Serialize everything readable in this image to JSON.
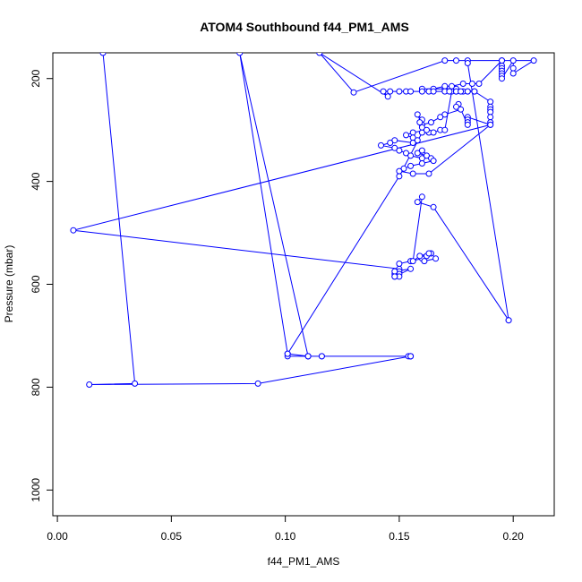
{
  "chart_data": {
    "type": "scatter",
    "title": "ATOM4 Southbound f44_PM1_AMS",
    "xlabel": "f44_PM1_AMS",
    "ylabel": "Pressure (mbar)",
    "xlim": [
      -0.002,
      0.218
    ],
    "ylim": [
      1050,
      150
    ],
    "y_reversed": true,
    "x_ticks": [
      0.0,
      0.05,
      0.1,
      0.15,
      0.2
    ],
    "x_tick_labels": [
      "0.00",
      "0.05",
      "0.10",
      "0.15",
      "0.20"
    ],
    "y_ticks": [
      200,
      400,
      600,
      800,
      1000
    ],
    "y_tick_labels": [
      "200",
      "400",
      "600",
      "800",
      "1000"
    ],
    "grid": false,
    "legend": "none",
    "color": "#0000ff",
    "series": [
      {
        "x": [
          0.02,
          0.034,
          0.014,
          0.088,
          0.155,
          0.154,
          0.155,
          0.116,
          0.11,
          0.101,
          0.101,
          0.11,
          0.116,
          0.155,
          0.11,
          0.08,
          0.101,
          0.15,
          0.16,
          0.163,
          0.165,
          0.168,
          0.17,
          0.173,
          0.175,
          0.178,
          0.18,
          0.183,
          0.17,
          0.175,
          0.16,
          0.165,
          0.17,
          0.173,
          0.178,
          0.182,
          0.185,
          0.195,
          0.195,
          0.195,
          0.195,
          0.195,
          0.195,
          0.195,
          0.2,
          0.2,
          0.2,
          0.209,
          0.195,
          0.18,
          0.175,
          0.17,
          0.13,
          0.115,
          0.145,
          0.143,
          0.146,
          0.15,
          0.153,
          0.155,
          0.16,
          0.163,
          0.165,
          0.17,
          0.172,
          0.175,
          0.177,
          0.18,
          0.183,
          0.19,
          0.19,
          0.19,
          0.19,
          0.19,
          0.19,
          0.19,
          0.18,
          0.18,
          0.18,
          0.18,
          0.176,
          0.175,
          0.177,
          0.17,
          0.168,
          0.164,
          0.16,
          0.158,
          0.16,
          0.159,
          0.16,
          0.162,
          0.156,
          0.153,
          0.156,
          0.158,
          0.156,
          0.148,
          0.146,
          0.142,
          0.148,
          0.15,
          0.153,
          0.155,
          0.16,
          0.162,
          0.158,
          0.16,
          0.164,
          0.165,
          0.16,
          0.155,
          0.152,
          0.15,
          0.156,
          0.163,
          0.19,
          0.007,
          0.15,
          0.15,
          0.15,
          0.15,
          0.148,
          0.148,
          0.148,
          0.155,
          0.148,
          0.15,
          0.155,
          0.16,
          0.162,
          0.164,
          0.166,
          0.161,
          0.163,
          0.159,
          0.156,
          0.16,
          0.158,
          0.165,
          0.198,
          0.198,
          0.18
        ],
        "y": [
          150,
          793,
          795,
          793,
          740,
          740,
          740,
          740,
          740,
          740,
          735,
          740,
          740,
          740,
          740,
          150,
          735,
          390,
          305,
          305,
          305,
          300,
          300,
          225,
          225,
          225,
          225,
          225,
          220,
          220,
          220,
          220,
          215,
          215,
          210,
          210,
          210,
          165,
          175,
          180,
          185,
          190,
          195,
          200,
          165,
          180,
          190,
          165,
          165,
          165,
          165,
          165,
          227,
          150,
          235,
          225,
          225,
          225,
          225,
          225,
          225,
          225,
          225,
          225,
          225,
          225,
          225,
          225,
          225,
          245,
          255,
          260,
          265,
          275,
          285,
          290,
          275,
          280,
          285,
          290,
          250,
          255,
          260,
          270,
          275,
          285,
          290,
          270,
          280,
          285,
          295,
          300,
          305,
          310,
          315,
          320,
          325,
          320,
          325,
          330,
          335,
          340,
          345,
          350,
          355,
          350,
          345,
          340,
          355,
          360,
          365,
          370,
          375,
          380,
          385,
          385,
          290,
          495,
          570,
          575,
          580,
          585,
          585,
          580,
          575,
          570,
          585,
          560,
          555,
          550,
          545,
          540,
          550,
          555,
          540,
          545,
          555,
          430,
          440,
          450,
          670,
          670,
          170
        ]
      }
    ]
  }
}
